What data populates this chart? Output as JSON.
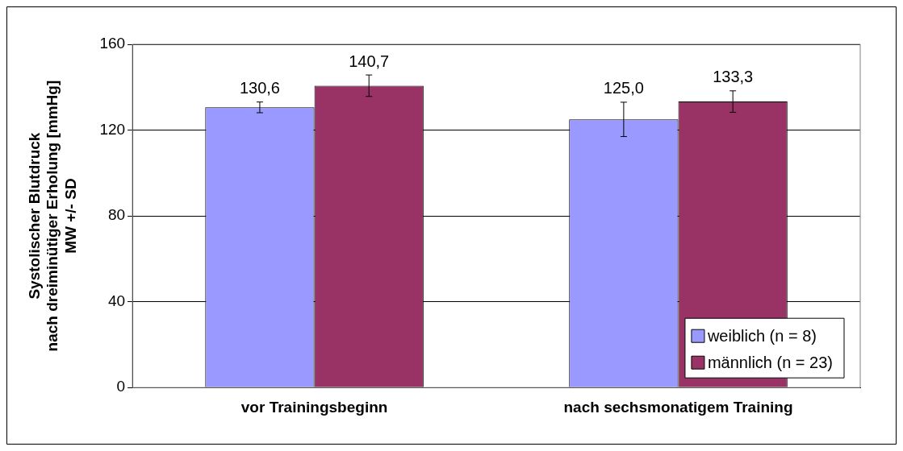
{
  "chart_data": {
    "type": "bar",
    "ylabel": "Systolischer Blutdruck\nnach dreiminütiger Erholung [mmHg]\nMW +/- SD",
    "categories": [
      "vor Trainingsbeginn",
      "nach sechsmonatigem Training"
    ],
    "series": [
      {
        "name": "weiblich (n = 8)",
        "color": "#9999ff",
        "values": [
          130.6,
          125.0
        ],
        "errors": [
          2.5,
          8
        ],
        "value_labels": [
          "130,6",
          "125,0"
        ]
      },
      {
        "name": "männlich (n = 23)",
        "color": "#993366",
        "values": [
          140.7,
          133.3
        ],
        "errors": [
          5,
          5
        ],
        "value_labels": [
          "140,7",
          "133,3"
        ]
      }
    ],
    "ylim": [
      0,
      160
    ],
    "yticks": [
      0,
      40,
      80,
      120,
      160
    ],
    "grid": "y",
    "legend": "bottom right"
  }
}
